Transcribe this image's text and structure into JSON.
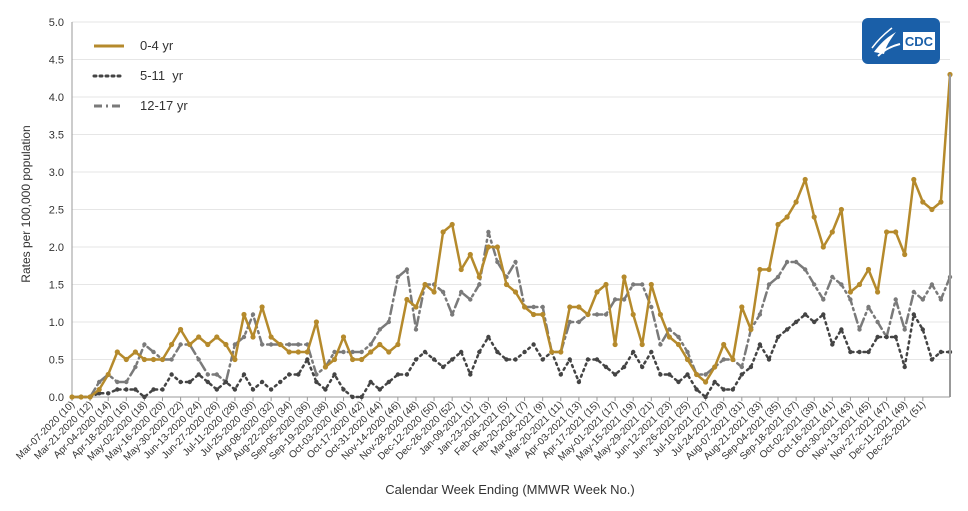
{
  "chart_data": {
    "type": "line",
    "ylabel": "Rates per 100,000 population",
    "xlabel": "Calendar Week Ending (MMWR Week No.)",
    "ylim": [
      0,
      5
    ],
    "yticks": [
      "0.0",
      "0.5",
      "1.0",
      "1.5",
      "2.0",
      "2.5",
      "3.0",
      "3.5",
      "4.0",
      "4.5",
      "5.0"
    ],
    "grid": "horizontal",
    "legend": "top-left",
    "x_tick_labels": [
      "Mar-07-2020 (10)",
      "Mar-21-2020 (12)",
      "Apr-04-2020 (14)",
      "Apr-18-2020 (16)",
      "May-02-2020 (18)",
      "May-16-2020 (20)",
      "May-30-2020 (22)",
      "Jun-13-2020 (24)",
      "Jun-27-2020 (26)",
      "Jul-11-2020 (28)",
      "Jul-25-2020 (30)",
      "Aug-08-2020 (32)",
      "Aug-22-2020 (34)",
      "Sep-05-2020 (36)",
      "Sep-19-2020 (38)",
      "Oct-03-2020 (40)",
      "Oct-17-2020 (42)",
      "Oct-31-2020 (44)",
      "Nov-14-2020 (46)",
      "Nov-28-2020 (48)",
      "Dec-12-2020 (50)",
      "Dec-26-2020 (52)",
      "Jan-09-2021 (1)",
      "Jan-23-2021 (3)",
      "Feb-06-2021 (5)",
      "Feb-20-2021 (7)",
      "Mar-06-2021 (9)",
      "Mar-20-2021 (11)",
      "Apr-03-2021 (13)",
      "Apr-17-2021 (15)",
      "May-01-2021 (17)",
      "May-15-2021 (19)",
      "May-29-2021 (21)",
      "Jun-12-2021 (23)",
      "Jun-26-2021 (25)",
      "Jul-10-2021 (27)",
      "Jul-24-2021 (29)",
      "Aug-07-2021 (31)",
      "Aug-21-2021 (33)",
      "Sep-04-2021 (35)",
      "Sep-18-2021 (37)",
      "Oct-02-2021 (39)",
      "Oct-16-2021 (41)",
      "Oct-30-2021 (43)",
      "Nov-13-2021 (45)",
      "Nov-27-2021 (47)",
      "Dec-11-2021 (49)",
      "Dec-25-2021 (51)"
    ],
    "series": [
      {
        "name": "0-4 yr",
        "color": "#b58a2c",
        "style": "solid",
        "values": [
          0,
          0,
          0,
          0.1,
          0.3,
          0.6,
          0.5,
          0.6,
          0.5,
          0.5,
          0.5,
          0.7,
          0.9,
          0.7,
          0.8,
          0.7,
          0.8,
          0.7,
          0.5,
          1.1,
          0.8,
          1.2,
          0.8,
          0.7,
          0.6,
          0.6,
          0.6,
          1.0,
          0.4,
          0.5,
          0.8,
          0.5,
          0.5,
          0.6,
          0.7,
          0.6,
          0.7,
          1.3,
          1.2,
          1.5,
          1.4,
          2.2,
          2.3,
          1.7,
          1.9,
          1.6,
          2.0,
          2.0,
          1.5,
          1.4,
          1.2,
          1.1,
          1.1,
          0.6,
          0.6,
          1.2,
          1.2,
          1.1,
          1.4,
          1.5,
          0.7,
          1.6,
          1.1,
          0.7,
          1.5,
          1.1,
          0.8,
          0.7,
          0.5,
          0.3,
          0.2,
          0.4,
          0.7,
          0.5,
          1.2,
          0.9,
          1.7,
          1.7,
          2.3,
          2.4,
          2.6,
          2.9,
          2.4,
          2.0,
          2.2,
          2.5,
          1.4,
          1.5,
          1.7,
          1.4,
          2.2,
          2.2,
          1.9,
          2.9,
          2.6,
          2.5,
          2.6,
          4.3
        ]
      },
      {
        "name": "5-11  yr",
        "color": "#444444",
        "style": "dotted",
        "values": [
          0,
          0,
          0,
          0.05,
          0.05,
          0.1,
          0.1,
          0.1,
          0,
          0.1,
          0.1,
          0.3,
          0.2,
          0.2,
          0.3,
          0.2,
          0.1,
          0.2,
          0.1,
          0.3,
          0.1,
          0.2,
          0.1,
          0.2,
          0.3,
          0.3,
          0.5,
          0.2,
          0.1,
          0.3,
          0.1,
          0,
          0,
          0.2,
          0.1,
          0.2,
          0.3,
          0.3,
          0.5,
          0.6,
          0.5,
          0.4,
          0.5,
          0.6,
          0.3,
          0.6,
          0.8,
          0.6,
          0.5,
          0.5,
          0.6,
          0.7,
          0.5,
          0.6,
          0.3,
          0.5,
          0.2,
          0.5,
          0.5,
          0.4,
          0.3,
          0.4,
          0.6,
          0.4,
          0.6,
          0.3,
          0.3,
          0.2,
          0.3,
          0.1,
          0,
          0.2,
          0.1,
          0.1,
          0.3,
          0.4,
          0.7,
          0.5,
          0.8,
          0.9,
          1.0,
          1.1,
          1.0,
          1.1,
          0.7,
          0.9,
          0.6,
          0.6,
          0.6,
          0.8,
          0.8,
          0.8,
          0.4,
          1.1,
          0.9,
          0.5,
          0.6,
          0.6
        ]
      },
      {
        "name": "12-17 yr",
        "color": "#7a7a7a",
        "style": "dashdot",
        "values": [
          0,
          0,
          0,
          0.2,
          0.3,
          0.2,
          0.2,
          0.4,
          0.7,
          0.6,
          0.5,
          0.5,
          0.7,
          0.7,
          0.5,
          0.3,
          0.3,
          0.2,
          0.7,
          0.8,
          1.1,
          0.7,
          0.7,
          0.7,
          0.7,
          0.7,
          0.7,
          0.3,
          0.4,
          0.6,
          0.6,
          0.6,
          0.6,
          0.7,
          0.9,
          1.0,
          1.6,
          1.7,
          0.9,
          1.5,
          1.5,
          1.4,
          1.1,
          1.4,
          1.3,
          1.5,
          2.2,
          1.8,
          1.6,
          1.8,
          1.2,
          1.2,
          1.2,
          0.6,
          0.6,
          1.0,
          1.0,
          1.1,
          1.1,
          1.1,
          1.3,
          1.3,
          1.5,
          1.5,
          1.2,
          0.7,
          0.9,
          0.8,
          0.6,
          0.3,
          0.3,
          0.4,
          0.5,
          0.5,
          0.4,
          0.9,
          1.1,
          1.5,
          1.6,
          1.8,
          1.8,
          1.7,
          1.5,
          1.3,
          1.6,
          1.5,
          1.3,
          0.9,
          1.2,
          1.0,
          0.8,
          1.3,
          0.9,
          1.4,
          1.3,
          1.5,
          1.3,
          1.6
        ]
      }
    ]
  },
  "logo": {
    "text": "CDC",
    "color": "#1a5fa8"
  }
}
